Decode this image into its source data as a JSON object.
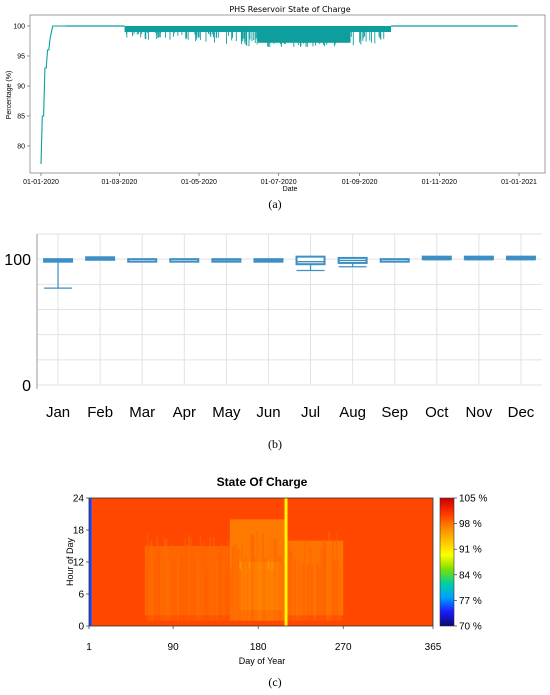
{
  "panel_a": {
    "caption": "(a)",
    "chart_data": {
      "type": "line",
      "title": "PHS Reservoir State of Charge",
      "xlabel": "Date",
      "ylabel": "Percentage (%)",
      "xlim": [
        "2020-01-01",
        "2021-01-01"
      ],
      "ylim": [
        76.5,
        101
      ],
      "xticks": [
        "01-01-2020",
        "01-03-2020",
        "01-05-2020",
        "01-07-2020",
        "01-09-2020",
        "01-11-2020",
        "01-01-2021"
      ],
      "yticks": [
        80,
        85,
        90,
        95,
        100
      ],
      "line_color": "#0e9e9e",
      "series": [
        {
          "x": [
            "2020-01-01",
            "2020-01-02",
            "2020-01-03",
            "2020-01-04",
            "2020-01-05",
            "2020-01-06",
            "2020-01-07",
            "2020-01-08",
            "2020-01-09",
            "2020-01-10",
            "2020-01-12",
            "2020-01-14",
            "2020-01-20",
            "2020-02-15",
            "2020-03-05",
            "2020-03-10",
            "2020-04-01",
            "2020-05-01",
            "2020-06-01",
            "2020-06-25",
            "2020-07-10",
            "2020-08-01",
            "2020-09-01",
            "2020-10-01",
            "2020-11-01",
            "2020-12-01",
            "2020-12-31"
          ],
          "y": [
            77,
            85,
            85,
            93,
            93,
            96,
            96,
            98,
            99,
            100,
            100,
            100,
            100,
            100,
            99.5,
            98.5,
            99,
            98.5,
            98,
            97.5,
            98,
            98.5,
            98.8,
            100,
            100,
            100,
            100
          ]
        }
      ],
      "fluctuation_band": {
        "start": "2020-03-05",
        "end": "2020-09-25",
        "dense_range": [
          99,
          100
        ],
        "dip_range": [
          96.5,
          100
        ]
      }
    }
  },
  "panel_b": {
    "caption": "(b)",
    "chart_data": {
      "type": "box",
      "categories": [
        "Jan",
        "Feb",
        "Mar",
        "Apr",
        "May",
        "Jun",
        "Jul",
        "Aug",
        "Sep",
        "Oct",
        "Nov",
        "Dec"
      ],
      "ylim": [
        0,
        120
      ],
      "yticks": [
        0,
        100
      ],
      "color": "#3d8fc4",
      "grid": true,
      "boxes": [
        {
          "min": 77,
          "q1": 98,
          "median": 99,
          "q3": 100,
          "max": 100
        },
        {
          "min": 99.5,
          "q1": 100,
          "median": 100.5,
          "q3": 101,
          "max": 101.5
        },
        {
          "min": 100,
          "q1": 100,
          "median": 100,
          "q3": 100,
          "max": 100
        },
        {
          "min": 100,
          "q1": 100,
          "median": 100,
          "q3": 100,
          "max": 100
        },
        {
          "min": 99,
          "q1": 99,
          "median": 99.5,
          "q3": 100,
          "max": 100
        },
        {
          "min": 98,
          "q1": 98,
          "median": 99,
          "q3": 100,
          "max": 100
        },
        {
          "min": 91,
          "q1": 96,
          "median": 98,
          "q3": 101,
          "max": 102
        },
        {
          "min": 94,
          "q1": 97,
          "median": 99,
          "q3": 100,
          "max": 101
        },
        {
          "min": 100,
          "q1": 100,
          "median": 100,
          "q3": 100,
          "max": 100
        },
        {
          "min": 99.5,
          "q1": 100,
          "median": 101,
          "q3": 101.5,
          "max": 102
        },
        {
          "min": 99.5,
          "q1": 100,
          "median": 101,
          "q3": 101.5,
          "max": 102
        },
        {
          "min": 99.5,
          "q1": 100,
          "median": 101,
          "q3": 101.5,
          "max": 102
        }
      ]
    }
  },
  "panel_c": {
    "caption": "(c)",
    "chart_data": {
      "type": "heatmap",
      "title": "State Of Charge",
      "xlabel": "Day of Year",
      "ylabel": "Hour of Day",
      "xlim": [
        1,
        365
      ],
      "ylim": [
        0,
        24
      ],
      "xticks": [
        1,
        90,
        180,
        270,
        365
      ],
      "yticks": [
        0,
        6,
        12,
        18,
        24
      ],
      "colorbar": {
        "min": 70,
        "max": 105,
        "ticks": [
          "105 %",
          "98 %",
          "91 %",
          "84 %",
          "77 %",
          "70 %"
        ],
        "colors": [
          "#0b0b6e",
          "#1a1aff",
          "#00a0ff",
          "#00d0a0",
          "#80e000",
          "#ffff00",
          "#ffc000",
          "#ff8000",
          "#ff3000",
          "#c80000"
        ]
      },
      "regions": [
        {
          "days": [
            1,
            4
          ],
          "hours": [
            0,
            24
          ],
          "value": 75
        },
        {
          "days": [
            4,
            365
          ],
          "hours": [
            0,
            24
          ],
          "value": 100
        },
        {
          "days": [
            60,
            150
          ],
          "hours": [
            2,
            15
          ],
          "value": 98.5
        },
        {
          "days": [
            150,
            210
          ],
          "hours": [
            1,
            20
          ],
          "value": 97.5
        },
        {
          "days": [
            210,
            270
          ],
          "hours": [
            2,
            16
          ],
          "value": 97.8
        },
        {
          "days": [
            160,
            205
          ],
          "hours": [
            3,
            12
          ],
          "value": 96
        },
        {
          "days": [
            208,
            211
          ],
          "hours": [
            0,
            24
          ],
          "value": 90
        }
      ]
    }
  }
}
